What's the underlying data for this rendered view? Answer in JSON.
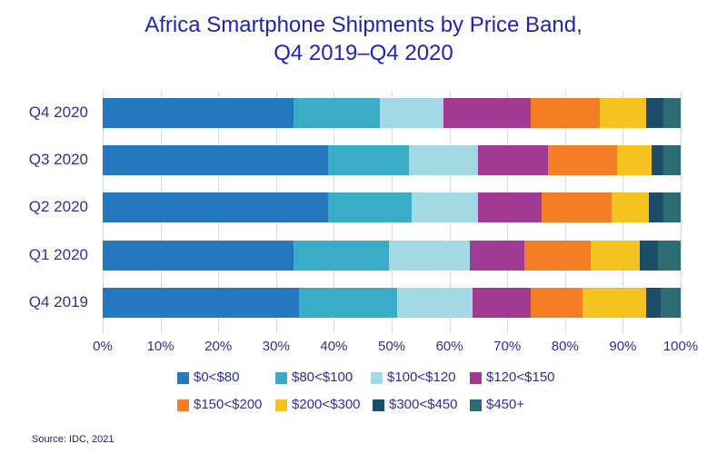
{
  "title": {
    "line1": "Africa Smartphone Shipments by Price Band,",
    "line2": "Q4 2019–Q4 2020"
  },
  "source": "Source: IDC, 2021",
  "chart_data": {
    "type": "bar",
    "orientation": "horizontal",
    "stacked": true,
    "title": "Africa Smartphone Shipments by Price Band, Q4 2019–Q4 2020",
    "categories": [
      "Q4 2020",
      "Q3 2020",
      "Q2 2020",
      "Q1 2020",
      "Q4 2019"
    ],
    "series": [
      {
        "name": "$0<$80",
        "color": "#2378BE",
        "values": [
          33,
          39,
          39,
          33,
          34
        ]
      },
      {
        "name": "$80<$100",
        "color": "#39ACC6",
        "values": [
          15,
          14,
          14.5,
          16.5,
          17
        ]
      },
      {
        "name": "$100<$120",
        "color": "#A2D9E4",
        "values": [
          11,
          12,
          11.5,
          14,
          13
        ]
      },
      {
        "name": "$120<$150",
        "color": "#A03A93",
        "values": [
          15,
          12,
          11,
          9.5,
          10
        ]
      },
      {
        "name": "$150<$200",
        "color": "#F37E26",
        "values": [
          12,
          12,
          12,
          11.5,
          9
        ]
      },
      {
        "name": "$200<$300",
        "color": "#F4C31F",
        "values": [
          8,
          6,
          6.5,
          8.5,
          11
        ]
      },
      {
        "name": "$300<$450",
        "color": "#1D4D68",
        "values": [
          3,
          2,
          2.5,
          3,
          2.5
        ]
      },
      {
        "name": "$450+",
        "color": "#2D6C71",
        "values": [
          3,
          3,
          3,
          4,
          3.5
        ]
      }
    ],
    "x_ticks": [
      "0%",
      "10%",
      "20%",
      "30%",
      "40%",
      "50%",
      "60%",
      "70%",
      "80%",
      "90%",
      "100%"
    ],
    "xlim": [
      0,
      100
    ],
    "grid": true,
    "legend_position": "bottom",
    "legend_rows": [
      [
        "$0<$80",
        "$80<$100",
        "$100<$120",
        "$120<$150"
      ],
      [
        "$150<$200",
        "$200<$300",
        "$300<$450",
        "$450+"
      ]
    ]
  }
}
